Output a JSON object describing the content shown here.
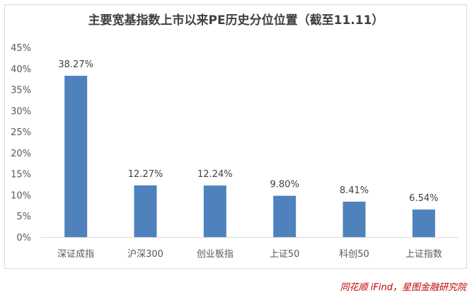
{
  "chart_data": {
    "type": "bar",
    "title": "主要宽基指数上市以来PE历史分位位置（截至11.11）",
    "categories": [
      "深证成指",
      "沪深300",
      "创业板指",
      "上证50",
      "科创50",
      "上证指数"
    ],
    "values": [
      38.27,
      12.27,
      12.24,
      9.8,
      8.41,
      6.54
    ],
    "data_labels": [
      "38.27%",
      "12.27%",
      "12.24%",
      "9.80%",
      "8.41%",
      "6.54%"
    ],
    "y_ticks": [
      "0%",
      "5%",
      "10%",
      "15%",
      "20%",
      "25%",
      "30%",
      "35%",
      "40%",
      "45%"
    ],
    "ylim": [
      0,
      45
    ],
    "grid": false,
    "bar_color": "#4f81bd"
  },
  "source": "同花顺 iFind，星图金融研究院"
}
